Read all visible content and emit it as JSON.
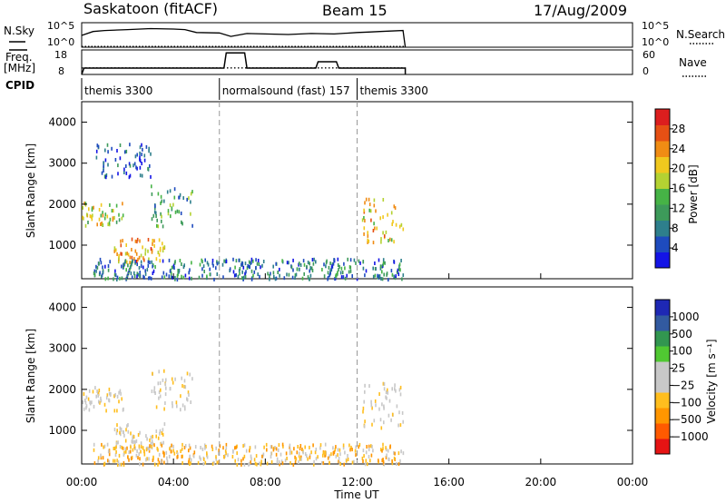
{
  "header": {
    "station": "Saskatoon (fitACF)",
    "beam": "Beam 15",
    "date": "17/Aug/2009"
  },
  "noise_panel": {
    "left_label": "N.Sky",
    "right_label": "N.Search",
    "left_ticks": [
      "10^5",
      "10^0"
    ],
    "right_ticks": [
      "10^5",
      "10^0"
    ]
  },
  "freq_panel": {
    "left_label_1": "Freq.",
    "left_label_2": "[MHz]",
    "right_label": "Nave",
    "left_ticks": [
      "18",
      "8"
    ],
    "right_ticks": [
      "60",
      "0"
    ]
  },
  "cpid": {
    "label": "CPID",
    "segments": [
      {
        "name": "themis 3300",
        "start_hour": 0.0
      },
      {
        "name": "normalsound (fast) 157",
        "start_hour": 6.0
      },
      {
        "name": "themis 3300",
        "start_hour": 12.0
      }
    ]
  },
  "colors": {
    "power": [
      "#1414e6",
      "#1e4bbe",
      "#2e7f8c",
      "#3d9a5a",
      "#46b346",
      "#b4d232",
      "#f0c81e",
      "#f08c14",
      "#e65014",
      "#dc1e1e"
    ],
    "velocity": [
      "#e61414",
      "#ff5a00",
      "#ff9600",
      "#ffbe1e",
      "#c8c8c8",
      "#c8c8c8",
      "#50c832",
      "#329650",
      "#325aa0",
      "#1e28b4"
    ]
  },
  "chart_data": [
    {
      "type": "line",
      "panel": "noise",
      "x_label": "",
      "series": [
        {
          "name": "N.Sky",
          "x_hours": [
            0.0,
            0.5,
            1,
            2,
            3,
            4,
            4.5,
            5,
            6,
            6.5,
            7.2,
            8,
            9,
            10,
            11,
            12,
            12.5,
            13,
            14,
            14.1
          ],
          "values_log10": [
            2.4,
            3.2,
            3.4,
            3.6,
            3.8,
            3.7,
            3.6,
            3.0,
            2.9,
            2.2,
            2.8,
            2.7,
            2.6,
            2.8,
            2.7,
            3.0,
            3.1,
            3.2,
            3.4,
            0.0
          ]
        },
        {
          "name": "N.Search",
          "x_hours": [
            0.0,
            14.1
          ],
          "values_log10": [
            0.0,
            0.0
          ]
        }
      ],
      "ylim_log10": [
        0,
        5
      ],
      "xlim_hours": [
        0,
        24
      ]
    },
    {
      "type": "line",
      "panel": "frequency",
      "series": [
        {
          "name": "Freq.",
          "unit": "MHz",
          "x_hours": [
            0,
            0.1,
            6.2,
            6.3,
            7.1,
            7.2,
            10.2,
            10.3,
            11.1,
            11.2,
            14.1
          ],
          "values": [
            8,
            10.6,
            10.6,
            16.8,
            16.8,
            10.6,
            10.6,
            13.2,
            13.2,
            10.6,
            10.6
          ]
        },
        {
          "name": "Nave",
          "x_hours": [
            0,
            14.1
          ],
          "values": [
            16,
            16
          ]
        }
      ],
      "ylim": [
        8,
        18
      ],
      "right_ylim": [
        0,
        60
      ],
      "xlim_hours": [
        0,
        24
      ]
    },
    {
      "type": "heatmap",
      "panel": "power",
      "title": "",
      "xlabel": "",
      "ylabel": "Slant Range [km]",
      "xlim_hours": [
        0,
        24
      ],
      "ylim_km": [
        180,
        4500
      ],
      "x_ticks": [
        "00:00",
        "04:00",
        "08:00",
        "12:00",
        "16:00",
        "20:00",
        "00:00"
      ],
      "y_ticks": [
        1000,
        2000,
        3000,
        4000
      ],
      "colorbar": {
        "label": "Power [dB]",
        "ticks": [
          4,
          8,
          12,
          16,
          20,
          24,
          28
        ],
        "range": [
          0,
          30
        ]
      },
      "scatter_regions": [
        {
          "hours": [
            0.0,
            1.8
          ],
          "range_km": [
            1500,
            2100
          ],
          "level": 16
        },
        {
          "hours": [
            1.4,
            3.6
          ],
          "range_km": [
            600,
            1200
          ],
          "level": 20
        },
        {
          "hours": [
            3.0,
            4.8
          ],
          "range_km": [
            1500,
            2500
          ],
          "level": 10
        },
        {
          "hours": [
            0.5,
            14.0
          ],
          "range_km": [
            200,
            700
          ],
          "level": 6
        },
        {
          "hours": [
            12.2,
            14.0
          ],
          "range_km": [
            1100,
            2200
          ],
          "level": 18
        },
        {
          "hours": [
            0.6,
            3.0
          ],
          "range_km": [
            2700,
            3500
          ],
          "level": 4
        }
      ]
    },
    {
      "type": "heatmap",
      "panel": "velocity",
      "title": "",
      "xlabel": "Time UT",
      "ylabel": "Slant Range [km]",
      "xlim_hours": [
        0,
        24
      ],
      "ylim_km": [
        180,
        4500
      ],
      "x_ticks": [
        "00:00",
        "04:00",
        "08:00",
        "12:00",
        "16:00",
        "20:00",
        "00:00"
      ],
      "y_ticks": [
        1000,
        2000,
        3000,
        4000
      ],
      "colorbar": {
        "label": "Velocity [m s⁻¹]",
        "ticks": [
          "1000",
          "500",
          "100",
          "25",
          "−25",
          "−100",
          "−500",
          "−1000"
        ]
      },
      "scatter_regions": [
        {
          "hours": [
            0.0,
            1.8
          ],
          "range_km": [
            1500,
            2100
          ],
          "level": "25"
        },
        {
          "hours": [
            1.4,
            3.6
          ],
          "range_km": [
            600,
            1200
          ],
          "level": "25"
        },
        {
          "hours": [
            3.0,
            4.8
          ],
          "range_km": [
            1500,
            2500
          ],
          "level": "25"
        },
        {
          "hours": [
            0.5,
            14.0
          ],
          "range_km": [
            200,
            700
          ],
          "level": "-100"
        },
        {
          "hours": [
            12.2,
            14.0
          ],
          "range_km": [
            1100,
            2200
          ],
          "level": "25"
        }
      ]
    }
  ]
}
